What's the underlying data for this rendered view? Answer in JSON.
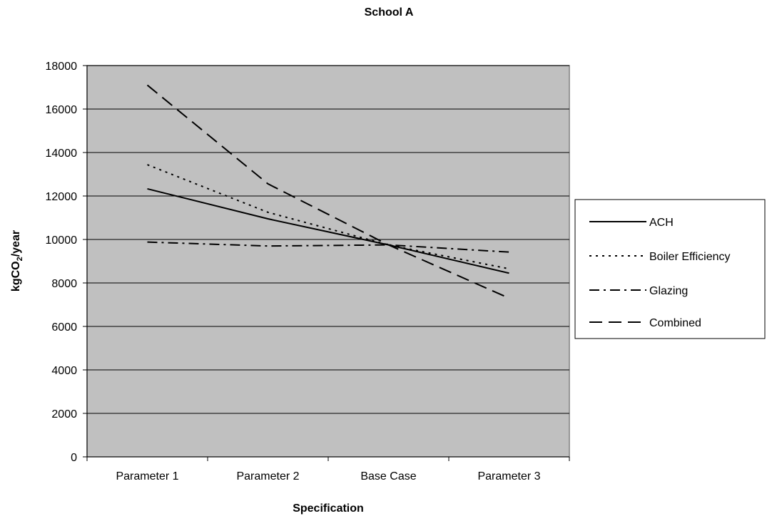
{
  "chart_data": {
    "type": "line",
    "title": "School A",
    "xlabel": "Specification",
    "ylabel": "kgCO2/year",
    "ylabel_parts": {
      "pre": "kgCO",
      "sub": "2",
      "post": "/year"
    },
    "categories": [
      "Parameter 1",
      "Parameter 2",
      "Base Case",
      "Parameter 3"
    ],
    "ylim": [
      0,
      18000
    ],
    "yticks": [
      "0",
      "2000",
      "4000",
      "6000",
      "8000",
      "10000",
      "12000",
      "14000",
      "16000",
      "18000"
    ],
    "grid": true,
    "legend_position": "right",
    "plot_background": "#c0c0c0",
    "series": [
      {
        "name": "ACH",
        "values": [
          12330,
          10950,
          9750,
          8450
        ],
        "dash": "solid"
      },
      {
        "name": "Boiler Efficiency",
        "values": [
          13440,
          11250,
          9750,
          8650
        ],
        "dash": "dot"
      },
      {
        "name": "Glazing",
        "values": [
          9880,
          9700,
          9750,
          9420
        ],
        "dash": "dashdot"
      },
      {
        "name": "Combined",
        "values": [
          17100,
          12560,
          9750,
          7300
        ],
        "dash": "dash"
      }
    ]
  }
}
